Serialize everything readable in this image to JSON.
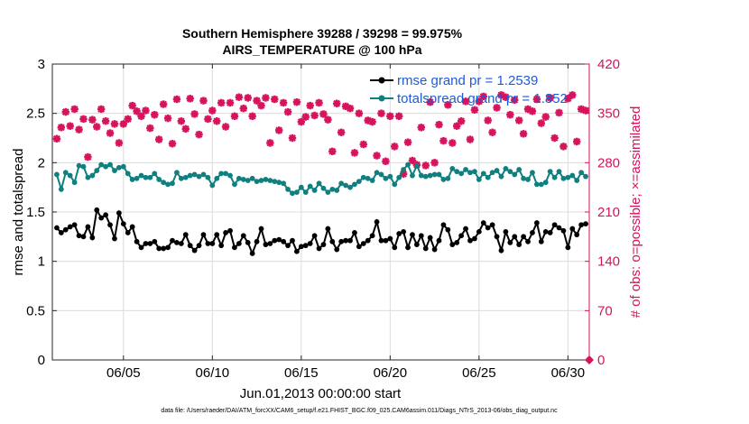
{
  "chart_data": {
    "type": "line",
    "title": "Southern Hemisphere 39288 / 39298 = 99.975%",
    "subtitle": "AIRS_TEMPERATURE @ 100 hPa",
    "xlabel": "Jun.01,2013 00:00:00 start",
    "ylabel": "rmse and totalspread",
    "y2label": "# of obs: o=possible; ×=assimilated",
    "footer": "data file: /Users/raeder/DAI/ATM_forcXX/CAM6_setup/f.e21.FHIST_BGC.f09_025.CAM6assim.011/Diags_NTrS_2013-06/obs_diag_output.nc",
    "xlim": [
      1,
      31.2
    ],
    "ylim": [
      0,
      3
    ],
    "y2lim": [
      0,
      420
    ],
    "x_ticks": [
      5,
      10,
      15,
      20,
      25,
      30
    ],
    "x_tick_labels": [
      "06/05",
      "06/10",
      "06/15",
      "06/20",
      "06/25",
      "06/30"
    ],
    "y_ticks": [
      0,
      0.5,
      1,
      1.5,
      2,
      2.5,
      3
    ],
    "y_tick_labels": [
      "0",
      "0.5",
      "1",
      "1.5",
      "2",
      "2.5",
      "3"
    ],
    "y2_ticks": [
      0,
      70,
      140,
      210,
      280,
      350,
      420
    ],
    "y2_tick_labels": [
      "0",
      "70",
      "140",
      "210",
      "280",
      "350",
      "420"
    ],
    "grid": true,
    "legend_position": "top-right",
    "colors": {
      "rmse": "#000000",
      "spread": "#0f7f7f",
      "obs": "#d6135c",
      "legend_text": "#1f5bd6"
    },
    "x": [
      1.25,
      1.5,
      1.75,
      2.0,
      2.25,
      2.5,
      2.75,
      3.0,
      3.25,
      3.5,
      3.75,
      4.0,
      4.25,
      4.5,
      4.75,
      5.0,
      5.25,
      5.5,
      5.75,
      6.0,
      6.25,
      6.5,
      6.75,
      7.0,
      7.25,
      7.5,
      7.75,
      8.0,
      8.25,
      8.5,
      8.75,
      9.0,
      9.25,
      9.5,
      9.75,
      10.0,
      10.25,
      10.5,
      10.75,
      11.0,
      11.25,
      11.5,
      11.75,
      12.0,
      12.25,
      12.5,
      12.75,
      13.0,
      13.25,
      13.5,
      13.75,
      14.0,
      14.25,
      14.5,
      14.75,
      15.0,
      15.25,
      15.5,
      15.75,
      16.0,
      16.25,
      16.5,
      16.75,
      17.0,
      17.25,
      17.5,
      17.75,
      18.0,
      18.25,
      18.5,
      18.75,
      19.0,
      19.25,
      19.5,
      19.75,
      20.0,
      20.25,
      20.5,
      20.75,
      21.0,
      21.25,
      21.5,
      21.75,
      22.0,
      22.25,
      22.5,
      22.75,
      23.0,
      23.25,
      23.5,
      23.75,
      24.0,
      24.25,
      24.5,
      24.75,
      25.0,
      25.25,
      25.5,
      25.75,
      26.0,
      26.25,
      26.5,
      26.75,
      27.0,
      27.25,
      27.5,
      27.75,
      28.0,
      28.25,
      28.5,
      28.75,
      29.0,
      29.25,
      29.5,
      29.75,
      30.0,
      30.25,
      30.5,
      30.75,
      31.0
    ],
    "series": [
      {
        "name": "rmse grand pr = 1.2539",
        "values": [
          1.34,
          1.29,
          1.32,
          1.35,
          1.37,
          1.26,
          1.25,
          1.35,
          1.24,
          1.52,
          1.44,
          1.47,
          1.37,
          1.23,
          1.49,
          1.38,
          1.29,
          1.35,
          1.2,
          1.14,
          1.18,
          1.18,
          1.2,
          1.13,
          1.13,
          1.14,
          1.21,
          1.19,
          1.18,
          1.27,
          1.16,
          1.11,
          1.16,
          1.27,
          1.18,
          1.18,
          1.27,
          1.16,
          1.29,
          1.31,
          1.14,
          1.18,
          1.26,
          1.19,
          1.08,
          1.2,
          1.33,
          1.17,
          1.18,
          1.21,
          1.22,
          1.2,
          1.16,
          1.21,
          1.1,
          1.15,
          1.16,
          1.18,
          1.26,
          1.13,
          1.17,
          1.33,
          1.2,
          1.12,
          1.2,
          1.21,
          1.21,
          1.29,
          1.15,
          1.18,
          1.21,
          1.26,
          1.4,
          1.21,
          1.21,
          1.23,
          1.14,
          1.28,
          1.3,
          1.14,
          1.27,
          1.17,
          1.26,
          1.13,
          1.24,
          1.12,
          1.21,
          1.37,
          1.32,
          1.17,
          1.19,
          1.26,
          1.33,
          1.21,
          1.23,
          1.3,
          1.39,
          1.34,
          1.37,
          1.25,
          1.11,
          1.3,
          1.19,
          1.25,
          1.17,
          1.25,
          1.2,
          1.29,
          1.39,
          1.2,
          1.3,
          1.29,
          1.37,
          1.34,
          1.31,
          1.14,
          1.33,
          1.27,
          1.37,
          1.38
        ]
      },
      {
        "name": "totalspread grand pr = 1.852",
        "values": [
          1.88,
          1.73,
          1.9,
          1.87,
          1.8,
          1.97,
          1.96,
          1.85,
          1.87,
          1.92,
          1.98,
          1.96,
          1.98,
          1.92,
          1.95,
          1.96,
          1.89,
          1.83,
          1.84,
          1.87,
          1.85,
          1.85,
          1.89,
          1.83,
          1.8,
          1.78,
          1.79,
          1.9,
          1.84,
          1.85,
          1.87,
          1.88,
          1.86,
          1.88,
          1.85,
          1.77,
          1.84,
          1.89,
          1.89,
          1.87,
          1.78,
          1.84,
          1.83,
          1.82,
          1.84,
          1.81,
          1.82,
          1.83,
          1.82,
          1.81,
          1.8,
          1.79,
          1.73,
          1.69,
          1.7,
          1.75,
          1.7,
          1.76,
          1.72,
          1.79,
          1.74,
          1.7,
          1.73,
          1.72,
          1.79,
          1.77,
          1.75,
          1.78,
          1.81,
          1.85,
          1.84,
          1.82,
          1.9,
          1.88,
          1.84,
          1.86,
          1.78,
          1.85,
          1.93,
          1.98,
          1.87,
          1.97,
          1.87,
          1.86,
          1.87,
          1.88,
          1.88,
          1.83,
          1.84,
          1.94,
          1.91,
          1.89,
          1.93,
          1.9,
          1.91,
          1.83,
          1.89,
          1.85,
          1.9,
          1.92,
          1.86,
          1.94,
          1.91,
          1.88,
          1.93,
          1.84,
          1.83,
          1.9,
          1.78,
          1.78,
          1.8,
          1.91,
          1.85,
          1.91,
          1.84,
          1.85,
          1.87,
          1.82,
          1.9,
          1.86
        ]
      }
    ],
    "obs_series": {
      "name": "# of obs",
      "values": [
        314,
        330,
        352,
        332,
        356,
        327,
        342,
        288,
        341,
        331,
        356,
        339,
        322,
        335,
        308,
        335,
        342,
        361,
        353,
        346,
        354,
        329,
        348,
        313,
        363,
        343,
        307,
        370,
        339,
        328,
        371,
        349,
        320,
        368,
        342,
        354,
        339,
        365,
        331,
        365,
        346,
        373,
        357,
        372,
        346,
        368,
        361,
        372,
        308,
        370,
        326,
        365,
        352,
        315,
        366,
        338,
        345,
        361,
        347,
        365,
        349,
        341,
        296,
        364,
        323,
        360,
        357,
        294,
        350,
        306,
        340,
        338,
        290,
        350,
        282,
        346,
        303,
        346,
        264,
        309,
        283,
        277,
        330,
        276,
        366,
        280,
        334,
        311,
        362,
        308,
        332,
        339,
        367,
        313,
        355,
        367,
        374,
        340,
        323,
        358,
        376,
        373,
        348,
        369,
        340,
        321,
        356,
        353,
        370,
        336,
        345,
        372,
        315,
        351,
        303,
        371,
        376,
        310,
        356,
        354
      ]
    }
  }
}
